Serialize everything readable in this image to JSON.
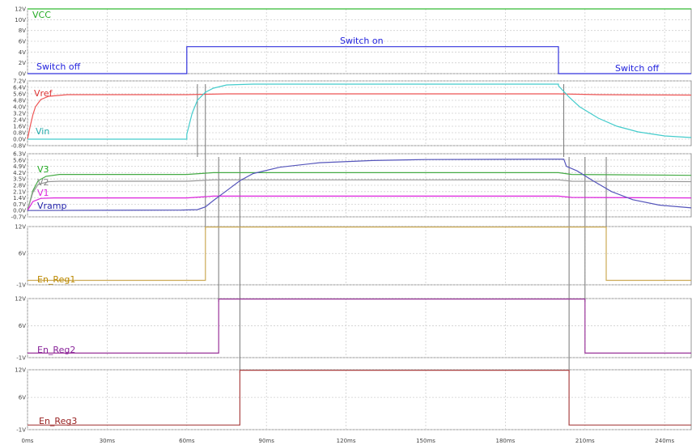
{
  "chart_data": {
    "type": "line",
    "x_axis": {
      "ticks": [
        0,
        30,
        60,
        90,
        120,
        150,
        180,
        210,
        240
      ],
      "tick_labels": [
        "0ms",
        "30ms",
        "60ms",
        "90ms",
        "120ms",
        "150ms",
        "180ms",
        "210ms",
        "240ms"
      ],
      "range": [
        0,
        250
      ]
    },
    "grid": true,
    "panes": [
      {
        "id": "pane1",
        "yrange": [
          0,
          12
        ],
        "ticks": [
          0,
          2,
          4,
          6,
          8,
          10,
          12
        ],
        "tick_labels": [
          "0V",
          "2V",
          "4V",
          "6V",
          "8V",
          "10V",
          "12V"
        ],
        "labels": [
          {
            "text": "VCC",
            "color": "#22aa22"
          },
          {
            "text": "Switch on",
            "color": "#2222dd"
          },
          {
            "text": "Switch off",
            "color": "#2222dd"
          },
          {
            "text": "Switch off",
            "color": "#2222dd"
          }
        ],
        "series": [
          {
            "name": "VCC",
            "color": "#33bb33",
            "points": [
              [
                0,
                12
              ],
              [
                250,
                12
              ]
            ]
          },
          {
            "name": "Switch",
            "color": "#3333dd",
            "points": [
              [
                0,
                0
              ],
              [
                60,
                0
              ],
              [
                60,
                5
              ],
              [
                200,
                5
              ],
              [
                200,
                0
              ],
              [
                250,
                0
              ]
            ]
          }
        ]
      },
      {
        "id": "pane2",
        "yrange": [
          -0.8,
          7.2
        ],
        "ticks": [
          -0.8,
          0.0,
          0.8,
          1.6,
          2.4,
          3.2,
          4.0,
          4.8,
          5.6,
          6.4,
          7.2
        ],
        "tick_labels": [
          "-0.8V",
          "0.0V",
          "0.8V",
          "1.6V",
          "2.4V",
          "3.2V",
          "4.0V",
          "4.8V",
          "5.6V",
          "6.4V",
          "7.2V"
        ],
        "labels": [
          {
            "text": "Vref",
            "color": "#dd3333"
          },
          {
            "text": "Vin",
            "color": "#22aaaa"
          }
        ],
        "series": [
          {
            "name": "Vref",
            "color": "#ee5555",
            "points": [
              [
                0,
                0
              ],
              [
                1,
                1.6
              ],
              [
                2,
                3.0
              ],
              [
                3,
                4.0
              ],
              [
                5,
                4.9
              ],
              [
                8,
                5.3
              ],
              [
                15,
                5.5
              ],
              [
                60,
                5.5
              ],
              [
                75,
                5.6
              ],
              [
                200,
                5.6
              ],
              [
                215,
                5.5
              ],
              [
                250,
                5.45
              ]
            ]
          },
          {
            "name": "Vin",
            "color": "#44cccc",
            "points": [
              [
                0,
                0
              ],
              [
                60,
                0
              ],
              [
                60,
                0.6
              ],
              [
                62,
                3.2
              ],
              [
                64,
                4.8
              ],
              [
                67,
                5.8
              ],
              [
                70,
                6.3
              ],
              [
                75,
                6.7
              ],
              [
                85,
                6.8
              ],
              [
                200,
                6.8
              ],
              [
                200,
                6.6
              ],
              [
                204,
                5.2
              ],
              [
                208,
                4.0
              ],
              [
                215,
                2.6
              ],
              [
                222,
                1.6
              ],
              [
                230,
                0.9
              ],
              [
                240,
                0.4
              ],
              [
                250,
                0.2
              ]
            ]
          }
        ]
      },
      {
        "id": "pane3",
        "yrange": [
          -0.7,
          6.3
        ],
        "ticks": [
          -0.7,
          0.0,
          0.7,
          1.4,
          2.1,
          2.8,
          3.5,
          4.2,
          4.9,
          5.6,
          6.3
        ],
        "tick_labels": [
          "-0.7V",
          "0.0V",
          "0.7V",
          "1.4V",
          "2.1V",
          "2.8V",
          "3.5V",
          "4.2V",
          "4.9V",
          "5.6V",
          "6.3V"
        ],
        "labels": [
          {
            "text": "V3",
            "color": "#22aa22"
          },
          {
            "text": "V2",
            "color": "#888888"
          },
          {
            "text": "V1",
            "color": "#dd22dd"
          },
          {
            "text": "Vramp",
            "color": "#2222aa"
          }
        ],
        "series": [
          {
            "name": "V3",
            "color": "#44aa44",
            "points": [
              [
                0,
                0
              ],
              [
                2,
                2.2
              ],
              [
                4,
                3.3
              ],
              [
                7,
                3.8
              ],
              [
                12,
                4.0
              ],
              [
                60,
                4.0
              ],
              [
                70,
                4.2
              ],
              [
                200,
                4.2
              ],
              [
                205,
                4.0
              ],
              [
                250,
                3.9
              ]
            ]
          },
          {
            "name": "V2",
            "color": "#999999",
            "points": [
              [
                0,
                0
              ],
              [
                2,
                2.0
              ],
              [
                4,
                2.9
              ],
              [
                8,
                3.2
              ],
              [
                12,
                3.25
              ],
              [
                60,
                3.25
              ],
              [
                70,
                3.4
              ],
              [
                200,
                3.4
              ],
              [
                205,
                3.25
              ],
              [
                250,
                3.2
              ]
            ]
          },
          {
            "name": "V1",
            "color": "#dd22dd",
            "points": [
              [
                0,
                0
              ],
              [
                2,
                1.0
              ],
              [
                5,
                1.35
              ],
              [
                10,
                1.4
              ],
              [
                60,
                1.4
              ],
              [
                70,
                1.6
              ],
              [
                200,
                1.6
              ],
              [
                205,
                1.45
              ],
              [
                250,
                1.4
              ]
            ]
          },
          {
            "name": "Vramp",
            "color": "#5555bb",
            "points": [
              [
                0,
                0
              ],
              [
                58,
                0.05
              ],
              [
                64,
                0.1
              ],
              [
                67,
                0.4
              ],
              [
                70,
                1.1
              ],
              [
                75,
                2.2
              ],
              [
                80,
                3.3
              ],
              [
                85,
                4.1
              ],
              [
                95,
                4.8
              ],
              [
                110,
                5.3
              ],
              [
                130,
                5.55
              ],
              [
                150,
                5.65
              ],
              [
                202,
                5.7
              ],
              [
                203,
                4.9
              ],
              [
                207,
                4.4
              ],
              [
                213,
                3.3
              ],
              [
                220,
                2.1
              ],
              [
                228,
                1.2
              ],
              [
                238,
                0.6
              ],
              [
                250,
                0.3
              ]
            ]
          }
        ]
      },
      {
        "id": "pane4",
        "yrange": [
          -1,
          12
        ],
        "ticks": [
          -1,
          6,
          12
        ],
        "tick_labels": [
          "-1V",
          "6V",
          "12V"
        ],
        "labels": [
          {
            "text": "En_Reg1",
            "color": "#bb8800"
          }
        ],
        "series": [
          {
            "name": "En_Reg1",
            "color": "#ccaa55",
            "points": [
              [
                0,
                0
              ],
              [
                67,
                0
              ],
              [
                67,
                11.9
              ],
              [
                218,
                11.9
              ],
              [
                218,
                0
              ],
              [
                250,
                0
              ]
            ]
          }
        ]
      },
      {
        "id": "pane5",
        "yrange": [
          -1,
          12
        ],
        "ticks": [
          -1,
          6,
          12
        ],
        "tick_labels": [
          "-1V",
          "6V",
          "12V"
        ],
        "labels": [
          {
            "text": "En_Reg2",
            "color": "#882299"
          }
        ],
        "series": [
          {
            "name": "En_Reg2",
            "color": "#993399",
            "points": [
              [
                0,
                0
              ],
              [
                72,
                0
              ],
              [
                72,
                11.9
              ],
              [
                210,
                11.9
              ],
              [
                210,
                0
              ],
              [
                250,
                0
              ]
            ]
          }
        ]
      },
      {
        "id": "pane6",
        "yrange": [
          -1,
          12
        ],
        "ticks": [
          -1,
          6,
          12
        ],
        "tick_labels": [
          "-1V",
          "6V",
          "12V"
        ],
        "labels": [
          {
            "text": "En_Reg3",
            "color": "#992222"
          }
        ],
        "series": [
          {
            "name": "En_Reg3",
            "color": "#aa4444",
            "points": [
              [
                0,
                0
              ],
              [
                80,
                0
              ],
              [
                80,
                11.9
              ],
              [
                204,
                11.9
              ],
              [
                204,
                0
              ],
              [
                250,
                0
              ]
            ]
          }
        ]
      }
    ],
    "markers": [
      {
        "x": 60,
        "from_pane": 1,
        "to_pane": 1
      },
      {
        "x": 64,
        "from_pane": 1,
        "to_pane": 2
      },
      {
        "x": 67,
        "from_pane": 1,
        "to_pane": 3
      },
      {
        "x": 72,
        "from_pane": 2,
        "to_pane": 4
      },
      {
        "x": 80,
        "from_pane": 2,
        "to_pane": 5
      },
      {
        "x": 202,
        "from_pane": 1,
        "to_pane": 2
      },
      {
        "x": 204,
        "from_pane": 2,
        "to_pane": 5
      },
      {
        "x": 210,
        "from_pane": 2,
        "to_pane": 4
      },
      {
        "x": 218,
        "from_pane": 2,
        "to_pane": 3
      }
    ]
  }
}
